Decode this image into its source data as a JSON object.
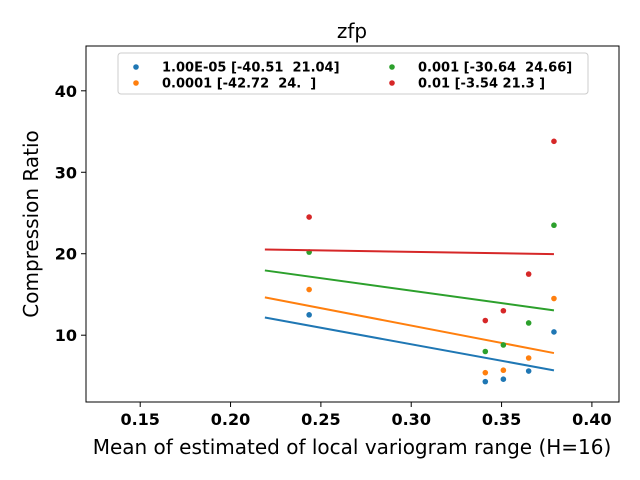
{
  "chart_data": {
    "type": "scatter",
    "title": "zfp",
    "xlabel": "Mean of estimated of local variogram range (H=16)",
    "ylabel": "Compression Ratio",
    "xlim": [
      0.12,
      0.415
    ],
    "ylim": [
      1.8,
      45.5
    ],
    "xticks": [
      0.15,
      0.2,
      0.25,
      0.3,
      0.35,
      0.4
    ],
    "xtick_labels": [
      "0.15",
      "0.20",
      "0.25",
      "0.30",
      "0.35",
      "0.40"
    ],
    "yticks": [
      10,
      20,
      30,
      40
    ],
    "ytick_labels": [
      "10",
      "20",
      "30",
      "40"
    ],
    "grid": false,
    "legend_position": "top",
    "fit_x_range": [
      0.219,
      0.379
    ],
    "series": [
      {
        "name": "1.00E-05 [-40.51  21.04]",
        "color": "#1f77b4",
        "x": [
          0.2435,
          0.341,
          0.351,
          0.365,
          0.379
        ],
        "y": [
          12.5,
          4.3,
          4.6,
          5.6,
          10.4
        ],
        "fit": [
          -40.51,
          21.04
        ]
      },
      {
        "name": "0.0001 [-42.72  24.  ]",
        "color": "#ff7f0e",
        "x": [
          0.2435,
          0.341,
          0.351,
          0.365,
          0.379
        ],
        "y": [
          15.6,
          5.4,
          5.7,
          7.2,
          14.5
        ],
        "fit": [
          -42.72,
          24.0
        ]
      },
      {
        "name": "0.001 [-30.64  24.66]",
        "color": "#2ca02c",
        "x": [
          0.2435,
          0.341,
          0.351,
          0.365,
          0.379
        ],
        "y": [
          20.2,
          8.0,
          8.8,
          11.5,
          23.5
        ],
        "fit": [
          -30.64,
          24.66
        ]
      },
      {
        "name": "0.01 [-3.54 21.3 ]",
        "color": "#d62728",
        "x": [
          0.2435,
          0.341,
          0.351,
          0.365,
          0.379
        ],
        "y": [
          24.5,
          11.8,
          13.0,
          17.5,
          33.8
        ],
        "fit": [
          -3.54,
          21.3
        ]
      }
    ]
  }
}
